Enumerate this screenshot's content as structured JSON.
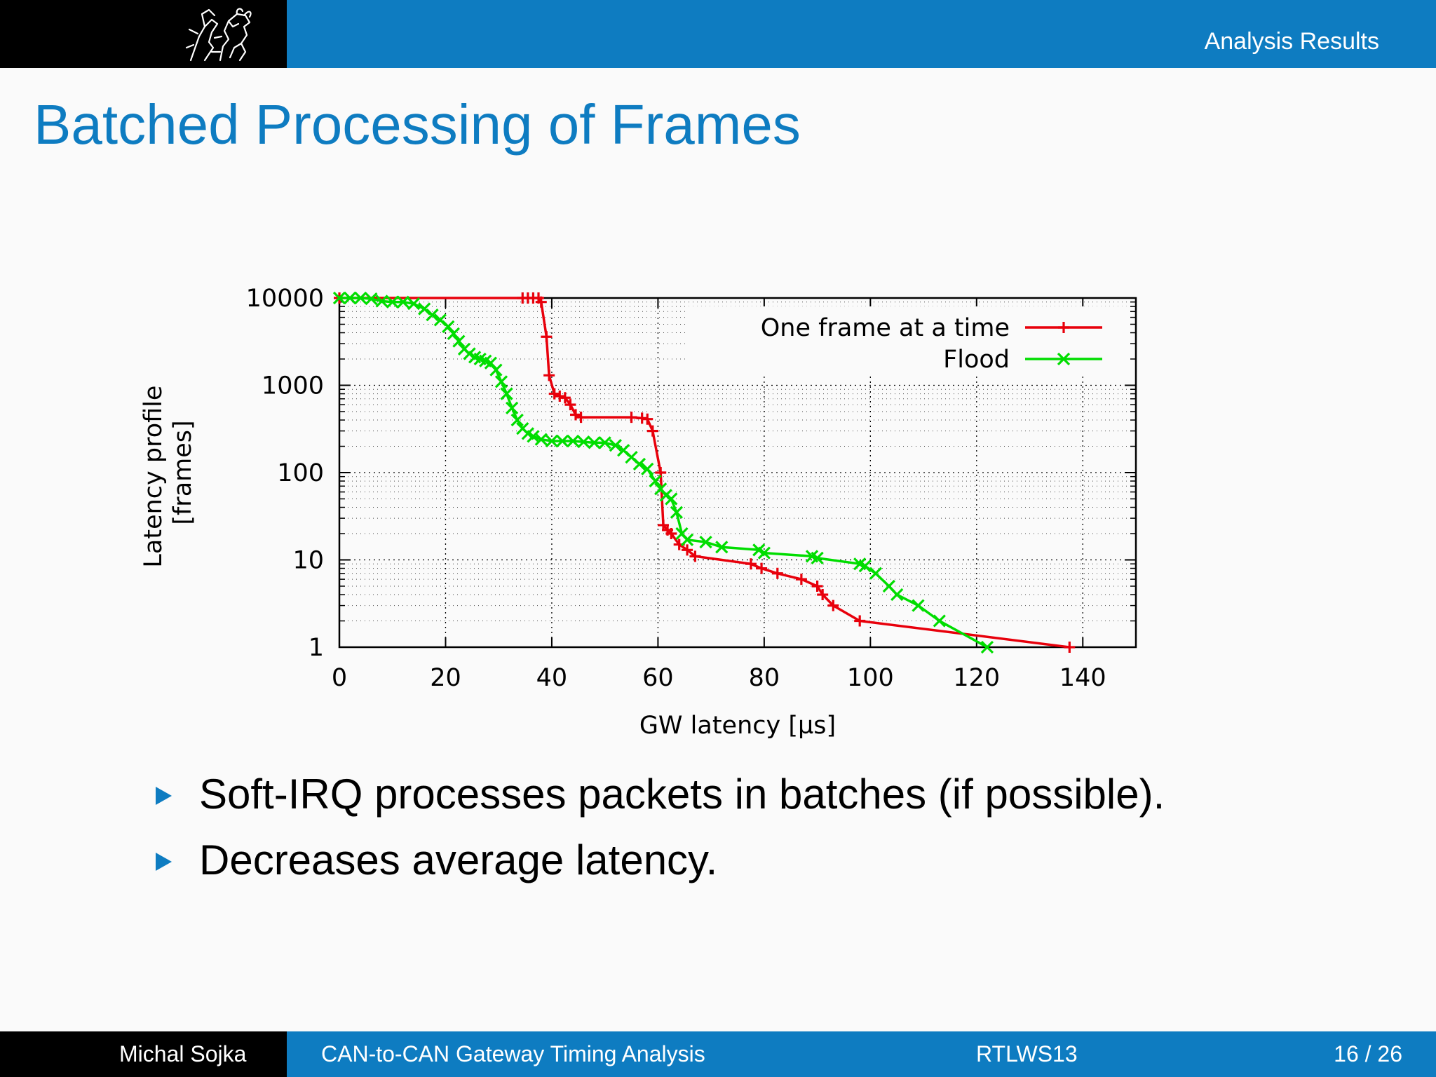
{
  "header": {
    "section": "Analysis Results"
  },
  "slide": {
    "title": "Batched Processing of Frames",
    "bullets": [
      "Soft-IRQ processes packets in batches (if possible).",
      "Decreases average latency."
    ]
  },
  "footer": {
    "author": "Michal Sojka",
    "talk": "CAN-to-CAN Gateway Timing Analysis",
    "conference": "RTLWS13",
    "page": "16 / 26"
  },
  "chart_data": {
    "type": "line",
    "xlabel": "GW latency [µs]",
    "ylabel": "Latency profile [frames]",
    "ylabel_lines": [
      "Latency profile",
      "[frames]"
    ],
    "xlim": [
      0,
      150
    ],
    "ylim": [
      1,
      10000
    ],
    "yscale": "log",
    "xticks": [
      "0",
      "20",
      "40",
      "60",
      "80",
      "100",
      "120",
      "140"
    ],
    "yticks": [
      "1",
      "10",
      "100",
      "1000",
      "10000"
    ],
    "grid": true,
    "legend_position": "top-right",
    "series": [
      {
        "name": "One frame at a time",
        "color": "#e8000b",
        "marker": "plus",
        "points": [
          [
            0,
            10000
          ],
          [
            34.5,
            10000
          ],
          [
            35.5,
            10000
          ],
          [
            36.5,
            10000
          ],
          [
            37.5,
            10000
          ],
          [
            38,
            9000
          ],
          [
            39,
            3600
          ],
          [
            39.5,
            1300
          ],
          [
            40.5,
            800
          ],
          [
            41.5,
            750
          ],
          [
            42.5,
            720
          ],
          [
            43.5,
            600
          ],
          [
            44.5,
            460
          ],
          [
            45.5,
            430
          ],
          [
            55,
            430
          ],
          [
            57,
            420
          ],
          [
            58,
            410
          ],
          [
            59,
            300
          ],
          [
            60.5,
            100
          ],
          [
            61,
            25
          ],
          [
            61.8,
            22
          ],
          [
            62.5,
            20
          ],
          [
            64,
            15
          ],
          [
            65.5,
            13
          ],
          [
            67,
            11
          ],
          [
            77.5,
            9
          ],
          [
            79.5,
            8
          ],
          [
            82.5,
            7
          ],
          [
            87,
            6
          ],
          [
            90,
            5
          ],
          [
            91,
            4
          ],
          [
            93,
            3
          ],
          [
            98,
            2
          ],
          [
            137.5,
            1
          ]
        ]
      },
      {
        "name": "Flood",
        "color": "#00dd00",
        "marker": "x",
        "points": [
          [
            0,
            10000
          ],
          [
            2,
            10000
          ],
          [
            4,
            10000
          ],
          [
            6,
            9800
          ],
          [
            8,
            9200
          ],
          [
            10,
            9000
          ],
          [
            12,
            9000
          ],
          [
            14,
            8600
          ],
          [
            16,
            7500
          ],
          [
            17.5,
            6400
          ],
          [
            19,
            5600
          ],
          [
            20.5,
            4700
          ],
          [
            21.5,
            3900
          ],
          [
            22.5,
            3200
          ],
          [
            23.5,
            2600
          ],
          [
            24.5,
            2300
          ],
          [
            25.5,
            2100
          ],
          [
            26.5,
            2000
          ],
          [
            27.5,
            1900
          ],
          [
            28.5,
            1800
          ],
          [
            29.5,
            1500
          ],
          [
            30.5,
            1100
          ],
          [
            31.5,
            800
          ],
          [
            32.5,
            550
          ],
          [
            33.5,
            400
          ],
          [
            34.5,
            320
          ],
          [
            35.5,
            280
          ],
          [
            36.5,
            260
          ],
          [
            38,
            240
          ],
          [
            40,
            230
          ],
          [
            42,
            230
          ],
          [
            44,
            230
          ],
          [
            46,
            225
          ],
          [
            48,
            220
          ],
          [
            50,
            220
          ],
          [
            52,
            205
          ],
          [
            53.5,
            180
          ],
          [
            55,
            150
          ],
          [
            56.5,
            125
          ],
          [
            58,
            110
          ],
          [
            59.5,
            80
          ],
          [
            60.5,
            65
          ],
          [
            61.5,
            55
          ],
          [
            62.5,
            50
          ],
          [
            63.5,
            35
          ],
          [
            64.5,
            20
          ],
          [
            65.5,
            17
          ],
          [
            69,
            16
          ],
          [
            72,
            14
          ],
          [
            79,
            13
          ],
          [
            80,
            12
          ],
          [
            89,
            11
          ],
          [
            90,
            10.5
          ],
          [
            98,
            9
          ],
          [
            99,
            8.5
          ],
          [
            101,
            7
          ],
          [
            103.5,
            5
          ],
          [
            105,
            4
          ],
          [
            109,
            3
          ],
          [
            113,
            2
          ],
          [
            122,
            1
          ]
        ]
      }
    ]
  }
}
